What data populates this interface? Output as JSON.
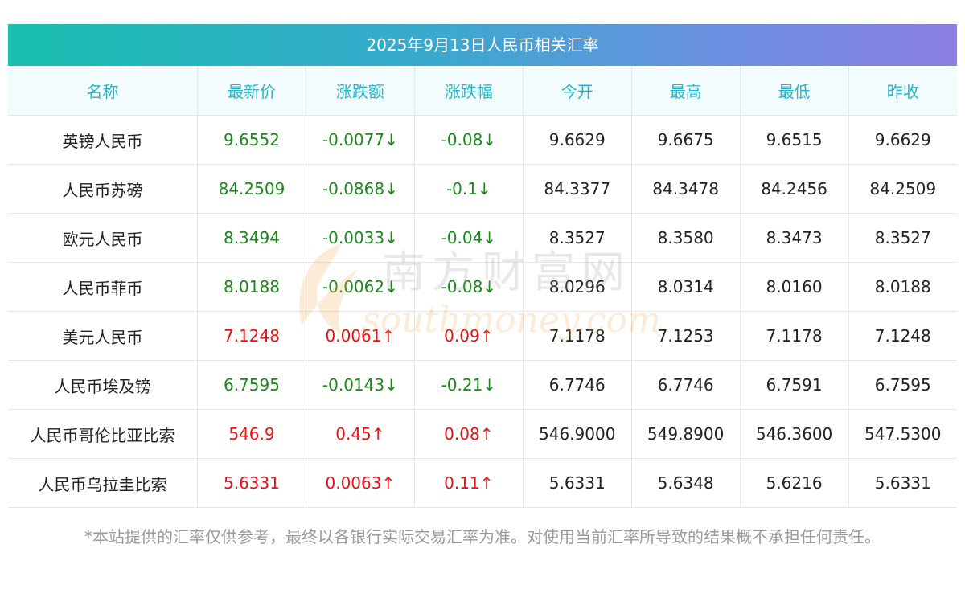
{
  "title": "2025年9月13日人民币相关汇率",
  "columns": [
    "名称",
    "最新价",
    "涨跌额",
    "涨跌幅",
    "今开",
    "最高",
    "最低",
    "昨收"
  ],
  "rows": [
    {
      "name": "英镑人民币",
      "latest": "9.6552",
      "change": "-0.0077↓",
      "pct": "-0.08↓",
      "open": "9.6629",
      "high": "9.6675",
      "low": "9.6515",
      "prev": "9.6629",
      "dir": "down"
    },
    {
      "name": "人民币苏磅",
      "latest": "84.2509",
      "change": "-0.0868↓",
      "pct": "-0.1↓",
      "open": "84.3377",
      "high": "84.3478",
      "low": "84.2456",
      "prev": "84.2509",
      "dir": "down"
    },
    {
      "name": "欧元人民币",
      "latest": "8.3494",
      "change": "-0.0033↓",
      "pct": "-0.04↓",
      "open": "8.3527",
      "high": "8.3580",
      "low": "8.3473",
      "prev": "8.3527",
      "dir": "down"
    },
    {
      "name": "人民币菲币",
      "latest": "8.0188",
      "change": "-0.0062↓",
      "pct": "-0.08↓",
      "open": "8.0296",
      "high": "8.0314",
      "low": "8.0160",
      "prev": "8.0188",
      "dir": "down"
    },
    {
      "name": "美元人民币",
      "latest": "7.1248",
      "change": "0.0061↑",
      "pct": "0.09↑",
      "open": "7.1178",
      "high": "7.1253",
      "low": "7.1178",
      "prev": "7.1248",
      "dir": "up"
    },
    {
      "name": "人民币埃及镑",
      "latest": "6.7595",
      "change": "-0.0143↓",
      "pct": "-0.21↓",
      "open": "6.7746",
      "high": "6.7746",
      "low": "6.7591",
      "prev": "6.7595",
      "dir": "down"
    },
    {
      "name": "人民币哥伦比亚比索",
      "latest": "546.9",
      "change": "0.45↑",
      "pct": "0.08↑",
      "open": "546.9000",
      "high": "549.8900",
      "low": "546.3600",
      "prev": "547.5300",
      "dir": "up"
    },
    {
      "name": "人民币乌拉圭比索",
      "latest": "5.6331",
      "change": "0.0063↑",
      "pct": "0.11↑",
      "open": "5.6331",
      "high": "5.6348",
      "low": "5.6216",
      "prev": "5.6331",
      "dir": "up"
    }
  ],
  "watermark": {
    "cn": "南方财富网",
    "en": "southmoney.com"
  },
  "footnote": "*本站提供的汇率仅供参考，最终以各银行实际交易汇率为准。对使用当前汇率所导致的结果概不承担任何责任。",
  "colors": {
    "up": "#ee1111",
    "down": "#1a8a1a",
    "header_text": "#27b6c9"
  }
}
